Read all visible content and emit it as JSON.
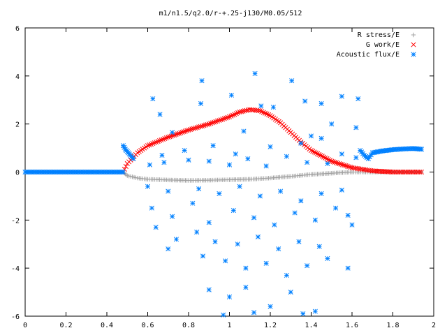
{
  "chart_data": {
    "type": "scatter",
    "title": "m1/n1.5/q2.0/r-+.25-j130/M0.05/512",
    "xlabel": "",
    "ylabel": "",
    "xlim": [
      0,
      2
    ],
    "ylim": [
      -6,
      6
    ],
    "xticks": [
      "0",
      "0.2",
      "0.4",
      "0.6",
      "0.8",
      "1",
      "1.2",
      "1.4",
      "1.6",
      "1.8",
      "2"
    ],
    "yticks": [
      "6",
      "4",
      "2",
      "0",
      "-2",
      "-4",
      "-6"
    ],
    "grid": false,
    "legend_position": "top-right",
    "series": [
      {
        "name": "R stress/E",
        "marker": "+",
        "color": "#a0a0a0",
        "points": [
          [
            0.48,
            0.0
          ],
          [
            0.5,
            -0.15
          ],
          [
            0.55,
            -0.25
          ],
          [
            0.6,
            -0.3
          ],
          [
            0.7,
            -0.33
          ],
          [
            0.8,
            -0.35
          ],
          [
            0.9,
            -0.34
          ],
          [
            1.0,
            -0.32
          ],
          [
            1.1,
            -0.3
          ],
          [
            1.2,
            -0.25
          ],
          [
            1.3,
            -0.18
          ],
          [
            1.4,
            -0.1
          ],
          [
            1.5,
            -0.05
          ],
          [
            1.6,
            0.0
          ],
          [
            1.7,
            0.0
          ],
          [
            1.8,
            0.0
          ],
          [
            1.94,
            0.0
          ]
        ]
      },
      {
        "name": "G work/E",
        "marker": "x",
        "color": "#ff0000",
        "points": [
          [
            0.48,
            0.0
          ],
          [
            0.5,
            0.35
          ],
          [
            0.55,
            0.8
          ],
          [
            0.6,
            1.1
          ],
          [
            0.7,
            1.45
          ],
          [
            0.8,
            1.75
          ],
          [
            0.9,
            2.0
          ],
          [
            1.0,
            2.3
          ],
          [
            1.05,
            2.5
          ],
          [
            1.1,
            2.6
          ],
          [
            1.15,
            2.55
          ],
          [
            1.2,
            2.35
          ],
          [
            1.25,
            2.05
          ],
          [
            1.3,
            1.65
          ],
          [
            1.35,
            1.25
          ],
          [
            1.4,
            0.9
          ],
          [
            1.5,
            0.45
          ],
          [
            1.6,
            0.18
          ],
          [
            1.7,
            0.05
          ],
          [
            1.8,
            0.0
          ],
          [
            1.94,
            0.0
          ]
        ]
      },
      {
        "name": "Acoustic flux/E",
        "marker": "*",
        "color": "#0080ff",
        "baseline": [
          [
            0.0,
            0.0
          ],
          [
            0.48,
            0.0
          ]
        ],
        "head": [
          [
            0.48,
            1.1
          ],
          [
            0.49,
            0.95
          ],
          [
            0.5,
            0.85
          ],
          [
            0.51,
            0.75
          ],
          [
            0.52,
            0.65
          ],
          [
            0.53,
            0.55
          ]
        ],
        "tail": [
          [
            1.64,
            0.9
          ],
          [
            1.66,
            0.7
          ],
          [
            1.68,
            0.55
          ],
          [
            1.7,
            0.8
          ],
          [
            1.75,
            0.88
          ],
          [
            1.8,
            0.93
          ],
          [
            1.85,
            0.96
          ],
          [
            1.9,
            0.98
          ],
          [
            1.94,
            0.95
          ]
        ],
        "points": [
          [
            1.125,
            4.1
          ],
          [
            0.865,
            3.8
          ],
          [
            1.305,
            3.8
          ],
          [
            0.625,
            3.05
          ],
          [
            1.01,
            3.2
          ],
          [
            0.86,
            2.85
          ],
          [
            1.155,
            2.75
          ],
          [
            1.215,
            2.7
          ],
          [
            1.37,
            2.95
          ],
          [
            1.45,
            2.85
          ],
          [
            1.55,
            3.15
          ],
          [
            1.63,
            3.05
          ],
          [
            0.66,
            2.4
          ],
          [
            1.5,
            2.0
          ],
          [
            1.62,
            1.85
          ],
          [
            0.72,
            1.65
          ],
          [
            1.07,
            1.7
          ],
          [
            1.4,
            1.5
          ],
          [
            0.67,
            0.7
          ],
          [
            0.78,
            0.9
          ],
          [
            0.92,
            1.1
          ],
          [
            1.03,
            0.75
          ],
          [
            1.2,
            1.05
          ],
          [
            1.35,
            1.2
          ],
          [
            1.45,
            1.4
          ],
          [
            1.55,
            0.75
          ],
          [
            1.62,
            0.6
          ],
          [
            0.61,
            0.3
          ],
          [
            0.68,
            0.4
          ],
          [
            0.8,
            0.5
          ],
          [
            0.9,
            0.45
          ],
          [
            1.0,
            0.3
          ],
          [
            1.09,
            0.55
          ],
          [
            1.18,
            0.25
          ],
          [
            1.28,
            0.65
          ],
          [
            1.38,
            0.4
          ],
          [
            1.48,
            0.35
          ],
          [
            0.6,
            -0.6
          ],
          [
            0.7,
            -0.8
          ],
          [
            0.85,
            -0.7
          ],
          [
            0.95,
            -0.9
          ],
          [
            1.05,
            -0.6
          ],
          [
            1.15,
            -1.0
          ],
          [
            1.25,
            -0.8
          ],
          [
            1.35,
            -1.2
          ],
          [
            1.45,
            -0.9
          ],
          [
            1.55,
            -0.75
          ],
          [
            0.62,
            -1.5
          ],
          [
            0.72,
            -1.85
          ],
          [
            0.82,
            -1.3
          ],
          [
            0.9,
            -2.1
          ],
          [
            1.02,
            -1.6
          ],
          [
            1.12,
            -1.9
          ],
          [
            1.22,
            -2.2
          ],
          [
            1.32,
            -1.7
          ],
          [
            1.42,
            -2.0
          ],
          [
            1.52,
            -1.5
          ],
          [
            1.58,
            -1.8
          ],
          [
            0.64,
            -2.3
          ],
          [
            0.74,
            -2.8
          ],
          [
            0.84,
            -2.5
          ],
          [
            0.93,
            -2.9
          ],
          [
            1.04,
            -3.0
          ],
          [
            1.14,
            -2.7
          ],
          [
            1.24,
            -3.2
          ],
          [
            1.34,
            -2.9
          ],
          [
            1.44,
            -3.1
          ],
          [
            1.6,
            -2.2
          ],
          [
            0.7,
            -3.2
          ],
          [
            0.87,
            -3.5
          ],
          [
            0.98,
            -3.7
          ],
          [
            1.08,
            -4.0
          ],
          [
            1.18,
            -3.8
          ],
          [
            1.28,
            -4.3
          ],
          [
            1.38,
            -3.9
          ],
          [
            1.48,
            -3.6
          ],
          [
            1.58,
            -4.0
          ],
          [
            0.9,
            -4.9
          ],
          [
            1.0,
            -5.2
          ],
          [
            1.08,
            -4.8
          ],
          [
            1.2,
            -5.6
          ],
          [
            1.3,
            -5.0
          ],
          [
            1.42,
            -5.8
          ],
          [
            1.12,
            -5.85
          ],
          [
            0.97,
            -5.95
          ],
          [
            1.36,
            -5.9
          ]
        ]
      }
    ]
  }
}
